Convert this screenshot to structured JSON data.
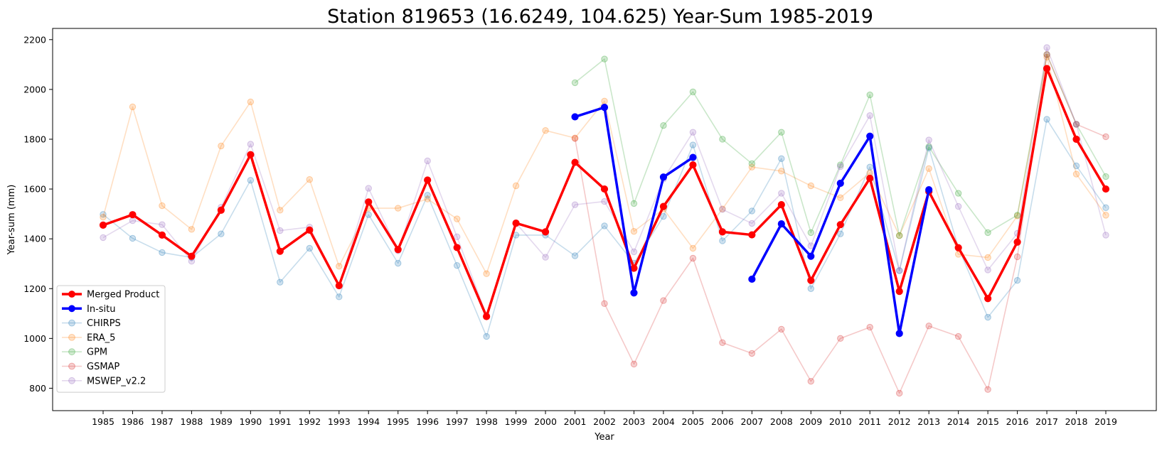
{
  "chart_data": {
    "type": "line",
    "title": "Station 819653 (16.6249, 104.625) Year-Sum 1985-2019",
    "xlabel": "Year",
    "ylabel": "Year-sum (mm)",
    "ylim": [
      710,
      2245
    ],
    "yticks": [
      800,
      1000,
      1200,
      1400,
      1600,
      1800,
      2000,
      2200
    ],
    "x": [
      1985,
      1986,
      1987,
      1988,
      1989,
      1990,
      1991,
      1992,
      1993,
      1994,
      1995,
      1996,
      1997,
      1998,
      1999,
      2000,
      2001,
      2002,
      2003,
      2004,
      2005,
      2006,
      2007,
      2008,
      2009,
      2010,
      2011,
      2012,
      2013,
      2014,
      2015,
      2016,
      2017,
      2018,
      2019
    ],
    "legend_position": "lower-left",
    "grid": false,
    "series": [
      {
        "name": "Merged Product",
        "color": "#ff0000",
        "emphasis": true,
        "values": [
          1455,
          1497,
          1415,
          1330,
          1515,
          1738,
          1350,
          1435,
          1212,
          1548,
          1357,
          1636,
          1365,
          1088,
          1463,
          1428,
          1707,
          1600,
          1282,
          1530,
          1697,
          1428,
          1416,
          1537,
          1233,
          1457,
          1643,
          1189,
          1590,
          1364,
          1160,
          1387,
          2084,
          1800,
          1600
        ]
      },
      {
        "name": "In-situ",
        "color": "#0000ff",
        "emphasis": true,
        "values": [
          null,
          null,
          null,
          null,
          null,
          null,
          null,
          null,
          null,
          null,
          null,
          null,
          null,
          null,
          null,
          null,
          1890,
          1928,
          1183,
          1648,
          1727,
          null,
          1238,
          1460,
          1330,
          1623,
          1812,
          1020,
          1597,
          null,
          null,
          null,
          null,
          null,
          null
        ]
      },
      {
        "name": "CHIRPS",
        "color": "#1f77b4",
        "emphasis": false,
        "values": [
          1498,
          1402,
          1345,
          1325,
          1420,
          1635,
          1226,
          1362,
          1167,
          1497,
          1302,
          1575,
          1293,
          1008,
          1415,
          1415,
          1332,
          1452,
          1302,
          1490,
          1777,
          1392,
          1512,
          1722,
          1200,
          1420,
          1688,
          1272,
          1765,
          1365,
          1085,
          1233,
          1880,
          1693,
          1525
        ]
      },
      {
        "name": "ERA_5",
        "color": "#ff7f0e",
        "emphasis": false,
        "values": [
          1487,
          1930,
          1533,
          1438,
          1773,
          1950,
          1515,
          1638,
          1290,
          1523,
          1523,
          1560,
          1480,
          1260,
          1613,
          1835,
          1805,
          1953,
          1430,
          1520,
          1362,
          1520,
          1688,
          1672,
          1613,
          1565,
          1665,
          1413,
          1682,
          1338,
          1325,
          1492,
          2130,
          1660,
          1495
        ]
      },
      {
        "name": "GPM",
        "color": "#2ca02c",
        "emphasis": false,
        "values": [
          null,
          null,
          null,
          null,
          null,
          null,
          null,
          null,
          null,
          null,
          null,
          null,
          null,
          null,
          null,
          null,
          2027,
          2122,
          1542,
          1855,
          1990,
          1800,
          1702,
          1828,
          1425,
          1697,
          1978,
          1413,
          1770,
          1583,
          1425,
          1495,
          2140,
          1860,
          1650
        ]
      },
      {
        "name": "GSMAP",
        "color": "#d62728",
        "emphasis": false,
        "values": [
          null,
          null,
          null,
          null,
          null,
          null,
          null,
          null,
          null,
          null,
          null,
          null,
          null,
          null,
          null,
          null,
          1803,
          1140,
          897,
          1152,
          1322,
          983,
          940,
          1037,
          828,
          1000,
          1045,
          780,
          1050,
          1008,
          795,
          1328,
          2140,
          1860,
          1810
        ]
      },
      {
        "name": "MSWEP_v2.2",
        "color": "#9467bd",
        "emphasis": false,
        "values": [
          1405,
          1473,
          1457,
          1310,
          1527,
          1780,
          1433,
          1447,
          1210,
          1603,
          1352,
          1713,
          1408,
          1093,
          1463,
          1326,
          1537,
          1550,
          1348,
          1640,
          1828,
          1518,
          1462,
          1583,
          1372,
          1690,
          1895,
          1273,
          1797,
          1530,
          1275,
          1422,
          2168,
          1860,
          1415
        ]
      }
    ]
  }
}
